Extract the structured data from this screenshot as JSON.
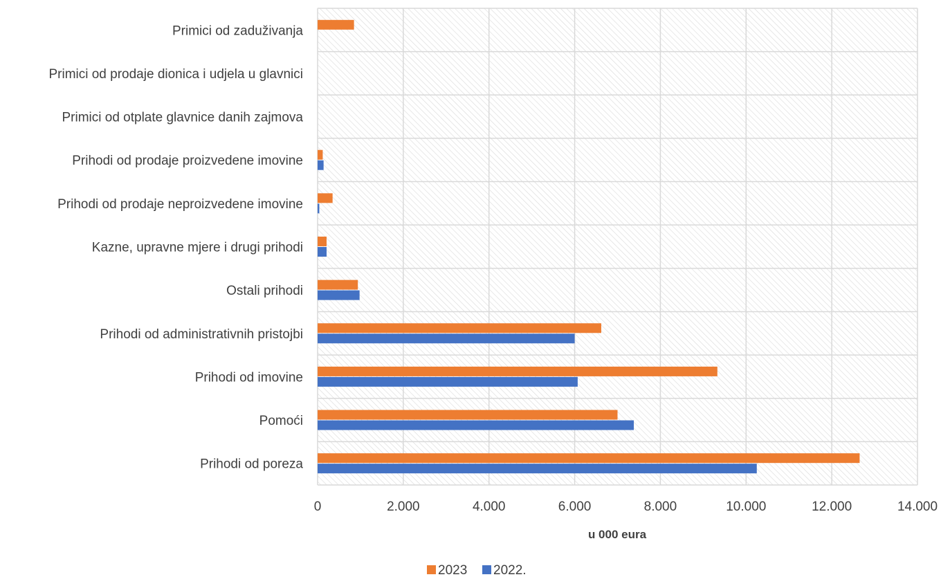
{
  "chart_data": {
    "type": "bar",
    "orientation": "horizontal",
    "categories": [
      "Prihodi od poreza",
      "Pomoći",
      "Prihodi od imovine",
      "Prihodi od administrativnih pristojbi",
      "Ostali prihodi",
      "Kazne, upravne mjere i drugi prihodi",
      "Prihodi od prodaje  neproizvedene imovine",
      "Prihodi od prodaje proizvedene imovine",
      "Primici od otplate glavnice danih zajmova",
      "Primici od prodaje dionica i udjela u glavnici",
      "Primici od zaduživanja"
    ],
    "series": [
      {
        "name": "2023",
        "color": "#ED7D31",
        "values": [
          12650,
          7000,
          9330,
          6620,
          940,
          210,
          350,
          120,
          0,
          0,
          850
        ]
      },
      {
        "name": "2022.",
        "color": "#4472C4",
        "values": [
          10250,
          7380,
          6070,
          6000,
          980,
          210,
          40,
          140,
          0,
          0,
          0
        ]
      }
    ],
    "xlim": [
      0,
      14000
    ],
    "xticks": [
      "0",
      "2.000",
      "4.000",
      "6.000",
      "8.000",
      "10.000",
      "12.000",
      "14.000"
    ],
    "xlabel": "u 000 eura",
    "ylabel": "",
    "title": "",
    "grid": true,
    "legend_position": "bottom"
  }
}
